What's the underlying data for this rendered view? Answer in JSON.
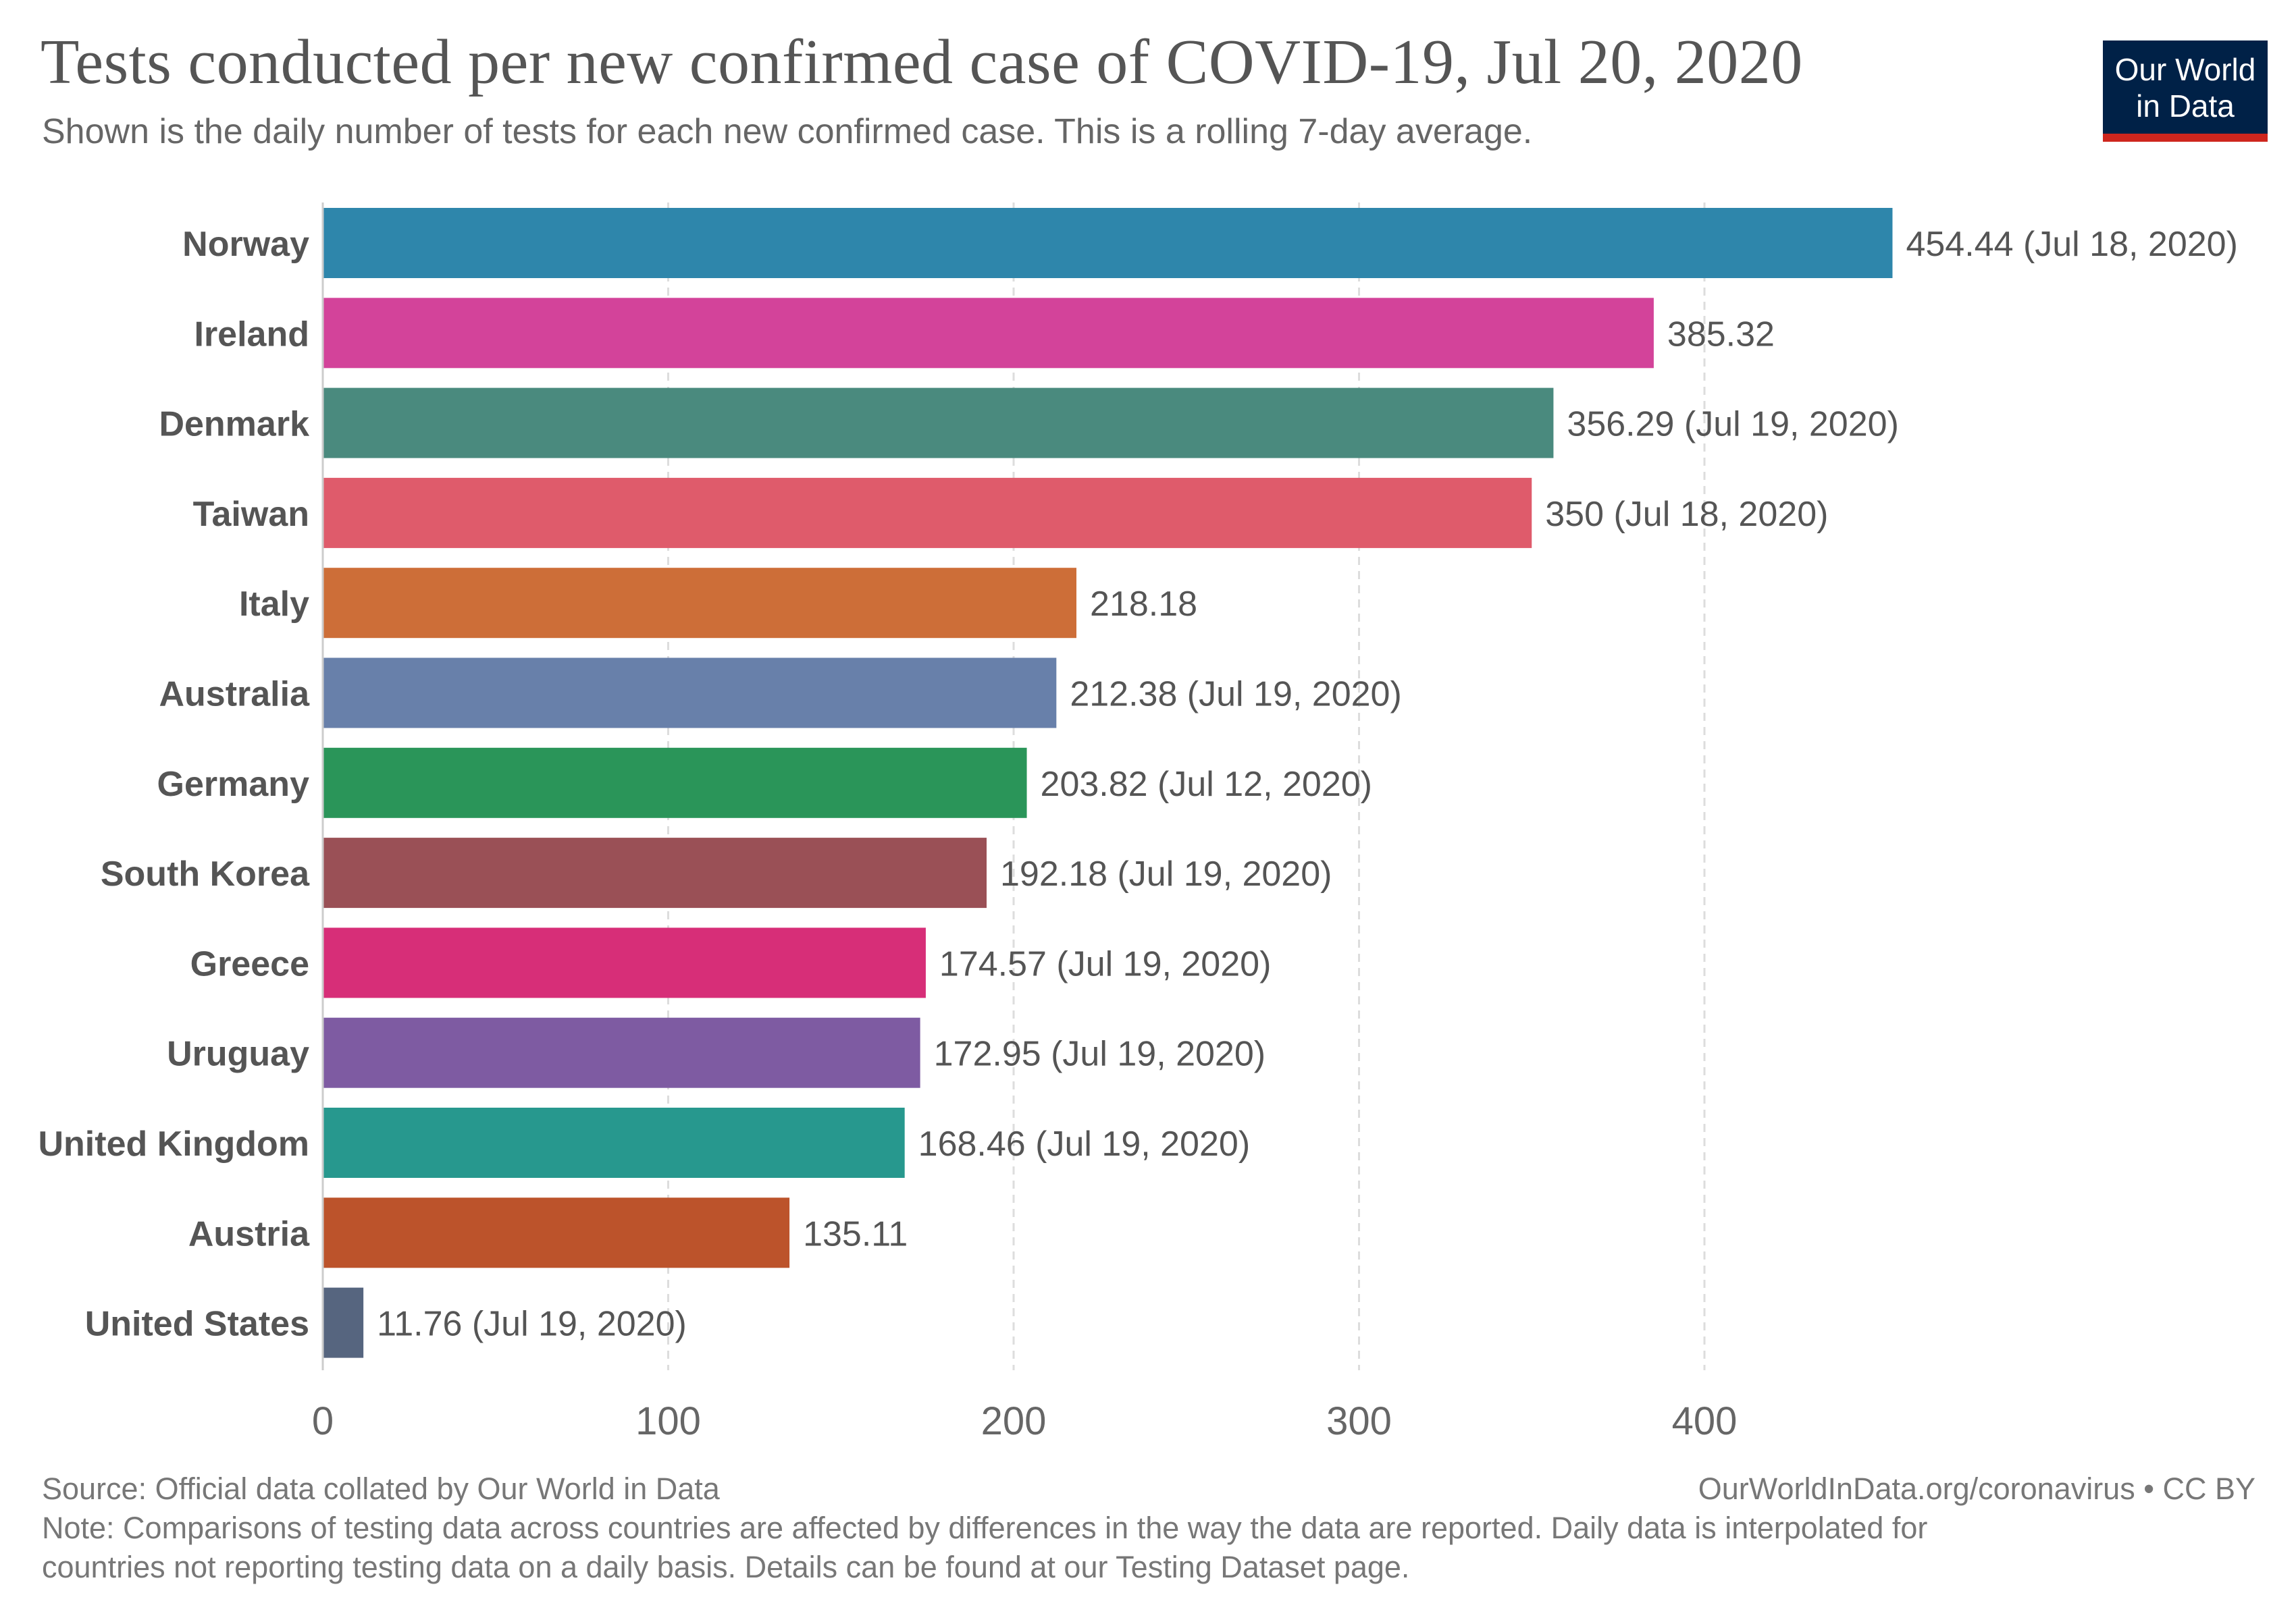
{
  "header": {
    "title": "Tests conducted per new confirmed case of COVID-19, Jul 20, 2020",
    "subtitle": "Shown is the daily number of tests for each new confirmed case. This is a rolling 7-day average."
  },
  "logo": {
    "line1": "Our World",
    "line2": "in Data",
    "bg_color": "#002147",
    "accent_color": "#ce261e"
  },
  "chart_data": {
    "type": "bar",
    "orientation": "horizontal",
    "title": "Tests conducted per new confirmed case of COVID-19, Jul 20, 2020",
    "xlim": [
      0,
      500
    ],
    "x_ticks": [
      0,
      100,
      200,
      300,
      400
    ],
    "grid": "vertical dashed",
    "categories": [
      "Norway",
      "Ireland",
      "Denmark",
      "Taiwan",
      "Italy",
      "Australia",
      "Germany",
      "South Korea",
      "Greece",
      "Uruguay",
      "United Kingdom",
      "Austria",
      "United States"
    ],
    "values": [
      454.44,
      385.32,
      356.29,
      350,
      218.18,
      212.38,
      203.82,
      192.18,
      174.57,
      172.95,
      168.46,
      135.11,
      11.76
    ],
    "value_labels": [
      "454.44 (Jul 18, 2020)",
      "385.32",
      "356.29 (Jul 19, 2020)",
      "350 (Jul 18, 2020)",
      "218.18",
      "212.38 (Jul 19, 2020)",
      "203.82 (Jul 12, 2020)",
      "192.18 (Jul 19, 2020)",
      "174.57 (Jul 19, 2020)",
      "172.95 (Jul 19, 2020)",
      "168.46 (Jul 19, 2020)",
      "135.11",
      "11.76 (Jul 19, 2020)"
    ],
    "colors": [
      "#2e86ab",
      "#d3439a",
      "#4a8a7e",
      "#df5b6b",
      "#cd6e38",
      "#6880aa",
      "#2a9559",
      "#9a5056",
      "#d72e78",
      "#7e5ba2",
      "#27988e",
      "#bc532b",
      "#56657f"
    ]
  },
  "footer": {
    "source": "Source: Official data collated by Our World in Data",
    "credit": "OurWorldInData.org/coronavirus • CC BY",
    "note_line1": "Note: Comparisons of testing data across countries are affected by differences in the way the data are reported. Daily data is interpolated for",
    "note_line2": "countries not reporting testing data on a daily basis. Details can be found at our Testing Dataset page."
  }
}
